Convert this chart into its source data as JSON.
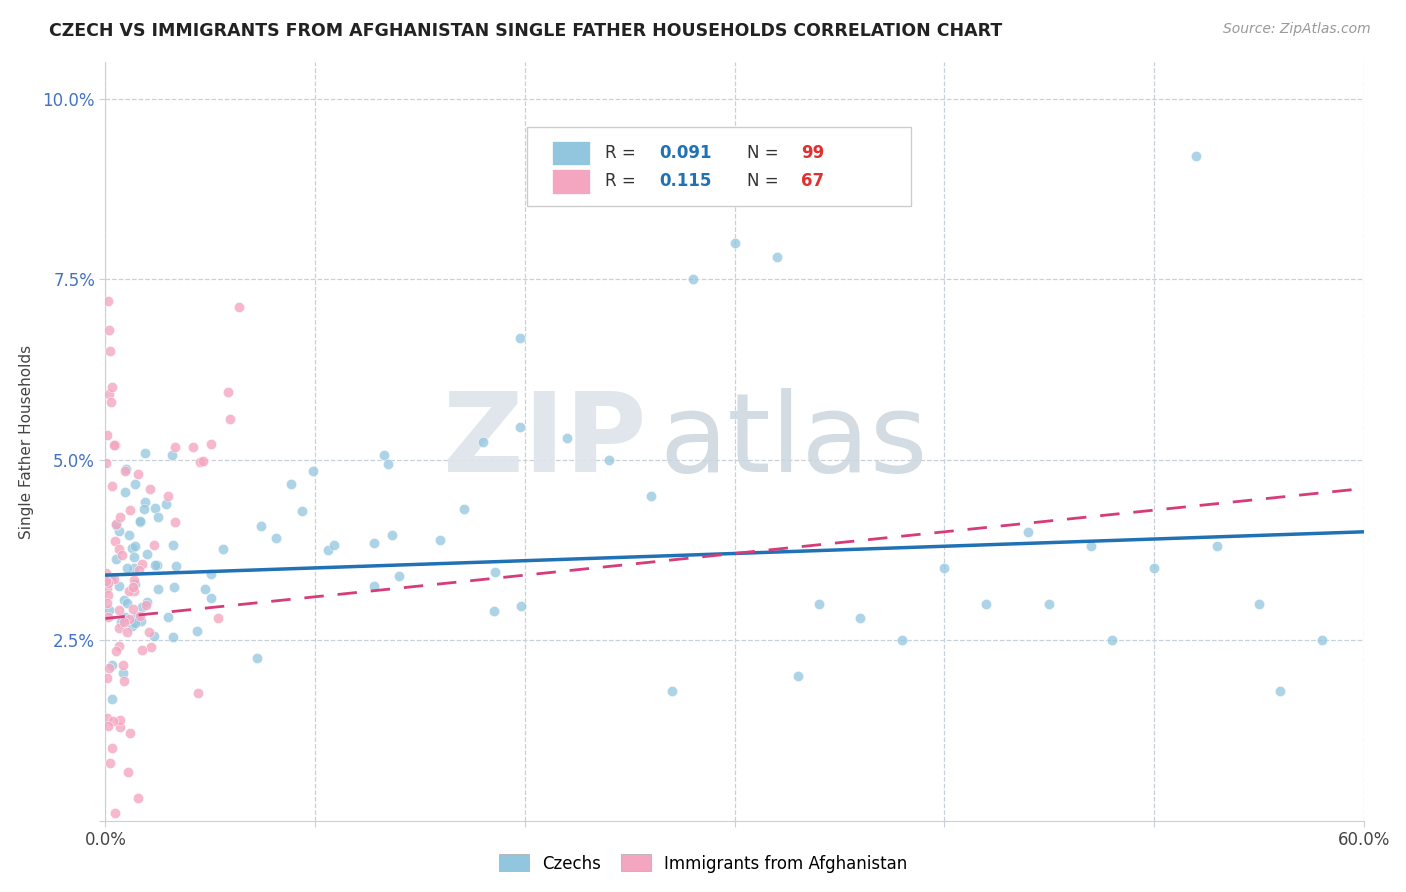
{
  "title": "CZECH VS IMMIGRANTS FROM AFGHANISTAN SINGLE FATHER HOUSEHOLDS CORRELATION CHART",
  "source": "Source: ZipAtlas.com",
  "ylabel": "Single Father Households",
  "xlim": [
    0,
    0.6
  ],
  "ylim": [
    0,
    0.105
  ],
  "blue_color": "#92c5de",
  "pink_color": "#f4a6c0",
  "trend_blue": "#2171b5",
  "trend_pink": "#d63b7a",
  "background_color": "#ffffff",
  "grid_color": "#c8d0da",
  "tick_color": "#4472c4",
  "r_value_color": "#2171b5",
  "n_value_color": "#e03030"
}
